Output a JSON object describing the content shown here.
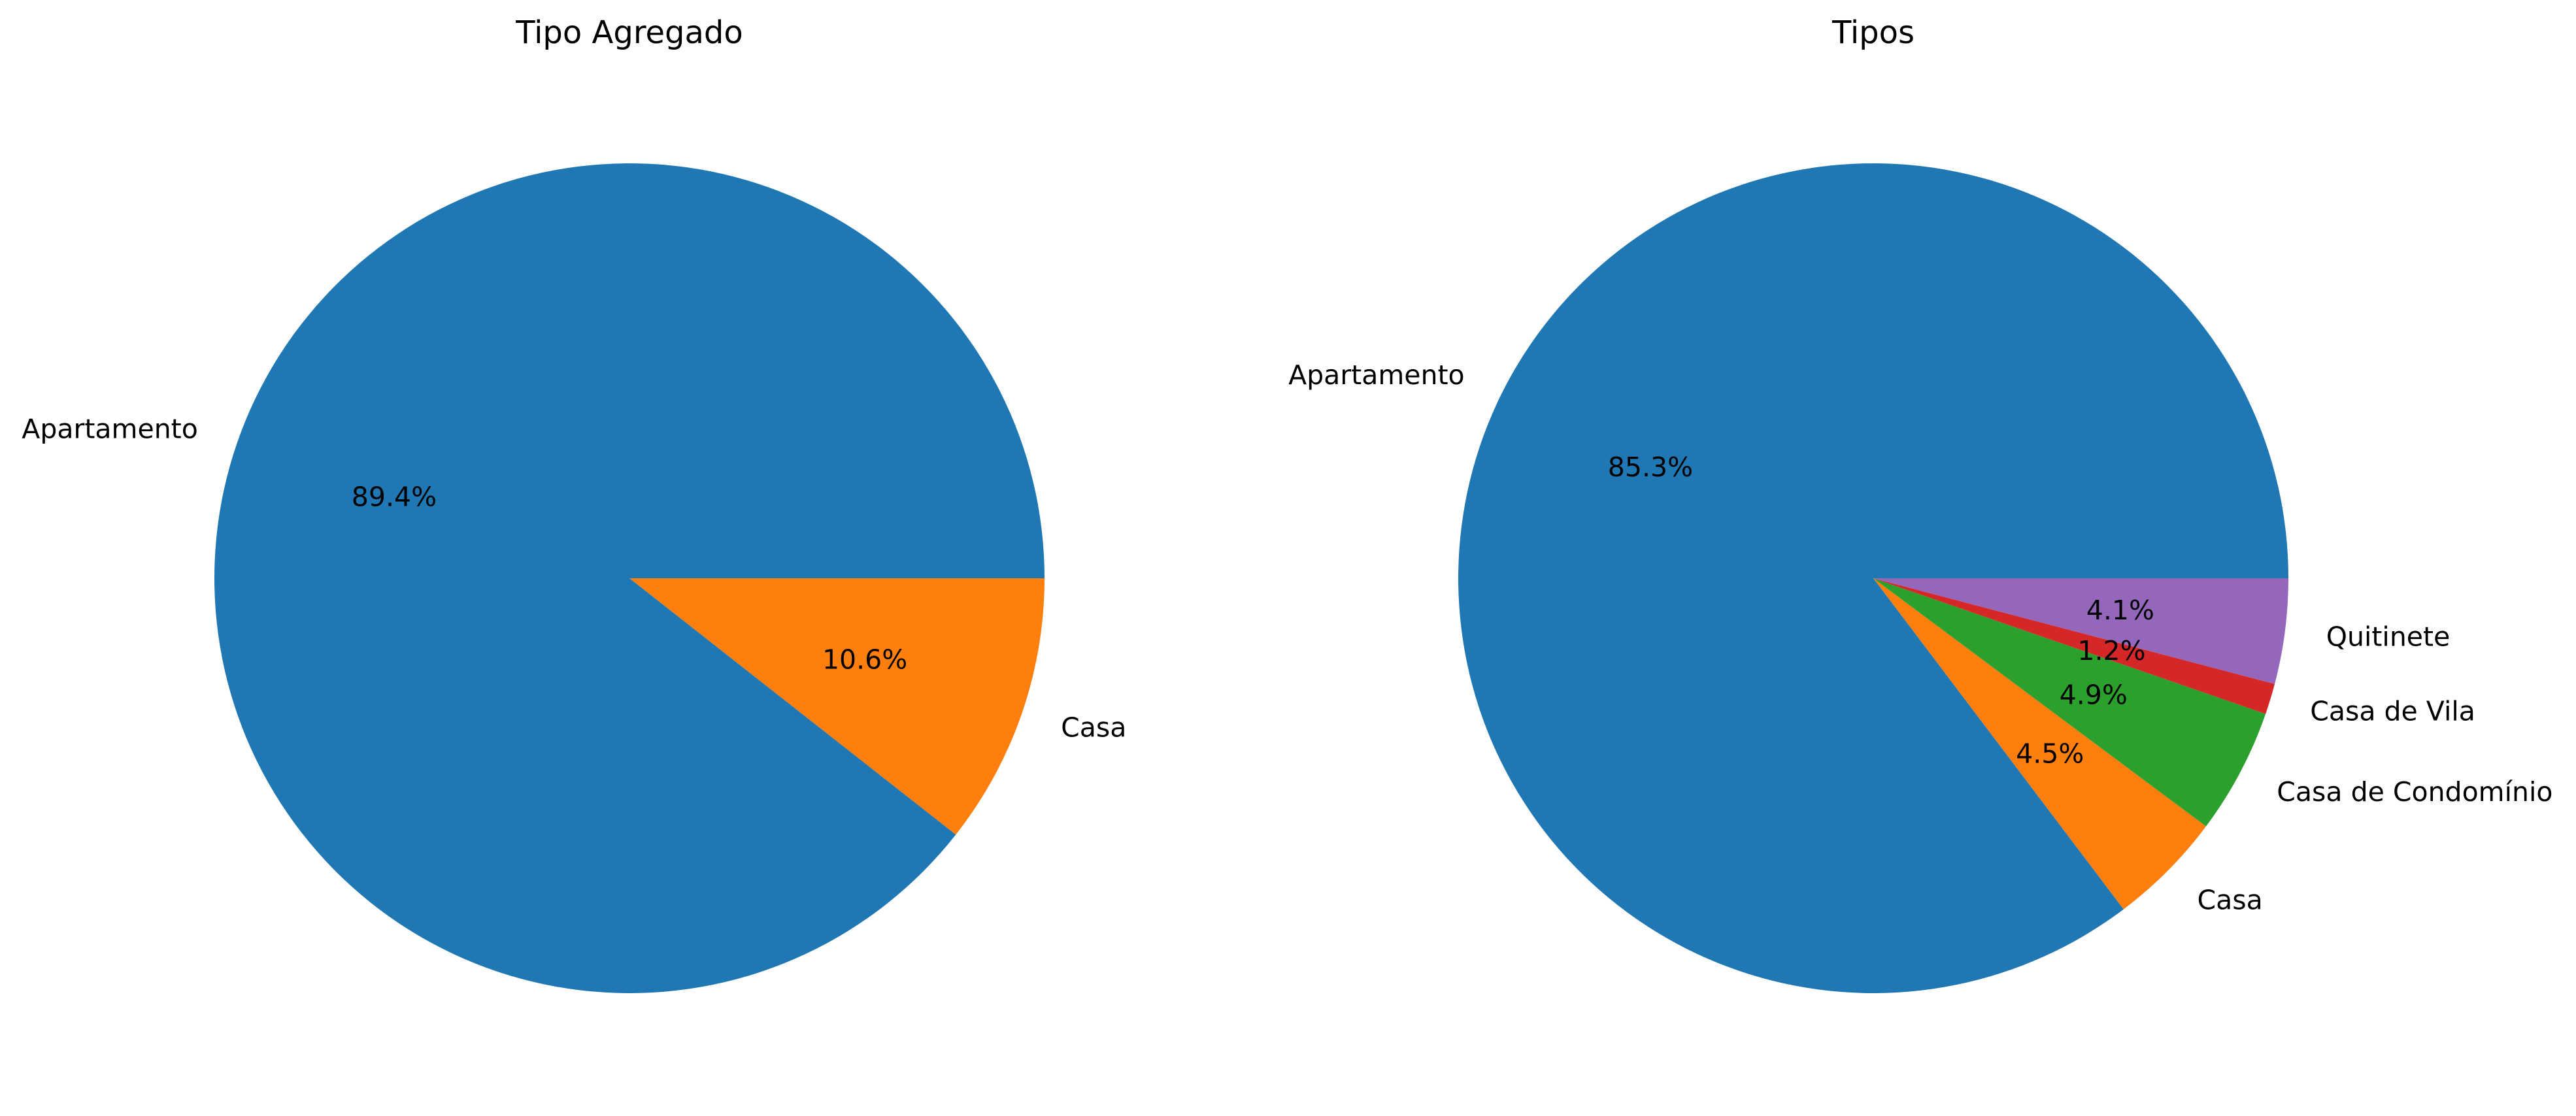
{
  "chart_data": [
    {
      "type": "pie",
      "title": "Tipo Agregado",
      "categories": [
        "Apartamento",
        "Casa"
      ],
      "values": [
        89.4,
        10.6
      ],
      "percent_labels": [
        "89.4%",
        "10.6%"
      ],
      "colors": [
        "#1f77b4",
        "#ff7f0e"
      ],
      "start_angle": 0,
      "direction": "counterclockwise"
    },
    {
      "type": "pie",
      "title": "Tipos",
      "categories": [
        "Apartamento",
        "Casa",
        "Casa de Condomínio",
        "Casa de Vila",
        "Quitinete"
      ],
      "values": [
        85.3,
        4.5,
        4.9,
        1.2,
        4.1
      ],
      "percent_labels": [
        "85.3%",
        "4.5%",
        "4.9%",
        "1.2%",
        "4.1%"
      ],
      "colors": [
        "#1f77b4",
        "#ff7f0e",
        "#2ca02c",
        "#d62728",
        "#9467bd"
      ],
      "start_angle": 0,
      "direction": "counterclockwise"
    }
  ]
}
